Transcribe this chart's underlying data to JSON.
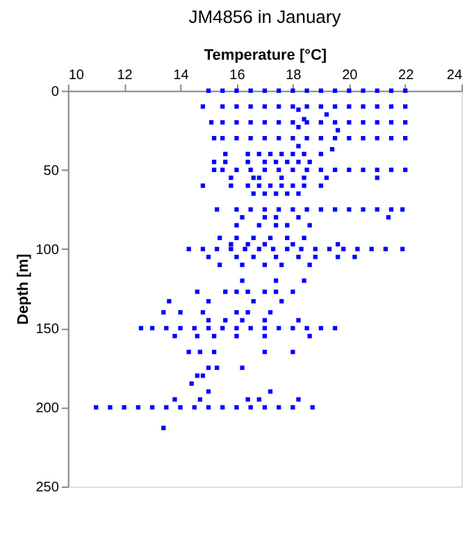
{
  "chart_data": {
    "type": "scatter",
    "title": "JM4856 in January",
    "xlabel": "Temperature [°C]",
    "ylabel": "Depth [m]",
    "xlim": [
      10,
      24
    ],
    "xticks": [
      10,
      12,
      14,
      16,
      18,
      20,
      22,
      24
    ],
    "ylim": [
      250,
      0
    ],
    "yticks": [
      0,
      50,
      100,
      150,
      200,
      250
    ],
    "grid": false,
    "legend": false,
    "marker": "square",
    "series": [
      {
        "color": "#0000ff",
        "x": [
          15.0,
          15.5,
          16.0,
          16.5,
          17.0,
          17.5,
          18.0,
          18.5,
          19.0,
          19.5,
          20.0,
          20.5,
          21.0,
          21.5,
          22.0,
          14.8,
          15.5,
          16.0,
          16.5,
          17.0,
          17.5,
          18.0,
          18.5,
          19.0,
          19.5,
          20.0,
          20.5,
          21.0,
          21.5,
          22.0,
          15.1,
          15.5,
          16.0,
          16.5,
          17.0,
          17.5,
          18.0,
          18.5,
          19.0,
          19.5,
          20.0,
          20.5,
          21.0,
          21.5,
          22.0,
          15.2,
          15.5,
          16.0,
          16.5,
          17.0,
          17.5,
          18.0,
          18.5,
          19.0,
          19.5,
          20.0,
          20.5,
          21.0,
          21.5,
          22.0,
          15.2,
          15.5,
          16.0,
          16.5,
          17.0,
          17.5,
          18.0,
          18.5,
          19.0,
          19.5,
          20.0,
          20.5,
          21.0,
          21.5,
          22.0,
          15.3,
          16.0,
          16.5,
          17.0,
          17.5,
          18.0,
          18.5,
          19.0,
          19.5,
          20.0,
          20.5,
          21.0,
          21.5,
          21.9,
          14.3,
          14.8,
          15.3,
          15.8,
          16.3,
          16.8,
          17.3,
          17.8,
          18.3,
          18.8,
          19.3,
          19.8,
          20.3,
          20.8,
          21.3,
          21.9,
          12.6,
          13.0,
          13.5,
          14.0,
          14.5,
          15.0,
          15.5,
          16.0,
          16.5,
          17.0,
          17.5,
          18.0,
          18.5,
          19.0,
          19.5,
          11.0,
          11.5,
          12.0,
          12.5,
          13.0,
          13.5,
          14.0,
          14.5,
          15.0,
          15.5,
          16.0,
          16.5,
          17.0,
          17.5,
          18.0,
          18.7,
          18.2,
          19.2,
          18.4,
          18.2,
          19.6,
          18.2,
          19.4,
          15.6,
          16.4,
          16.8,
          17.2,
          17.6,
          18.0,
          18.4,
          19.0,
          15.2,
          15.6,
          16.4,
          17.0,
          17.4,
          17.8,
          18.2,
          18.6,
          15.8,
          16.6,
          16.8,
          17.6,
          18.4,
          19.2,
          21.0,
          14.8,
          15.8,
          16.4,
          16.8,
          17.2,
          17.6,
          18.0,
          18.4,
          19.0,
          16.6,
          17.0,
          17.4,
          17.8,
          18.2,
          16.2,
          17.0,
          17.4,
          18.2,
          21.4,
          16.0,
          16.8,
          17.4,
          17.8,
          18.6,
          15.4,
          16.0,
          16.6,
          17.2,
          17.8,
          18.4,
          15.8,
          16.4,
          17.0,
          18.0,
          19.6,
          15.0,
          16.0,
          16.6,
          17.4,
          18.2,
          18.8,
          19.6,
          20.2,
          15.4,
          16.2,
          17.0,
          17.6,
          18.6,
          16.2,
          17.4,
          18.4,
          14.6,
          15.6,
          16.0,
          16.4,
          17.0,
          17.4,
          18.0,
          13.6,
          15.0,
          16.6,
          17.6,
          13.4,
          14.0,
          14.8,
          16.0,
          16.4,
          17.2,
          15.0,
          15.6,
          16.2,
          17.0,
          18.2,
          13.8,
          14.6,
          15.2,
          16.0,
          17.0,
          18.6,
          14.3,
          14.7,
          15.2,
          17.0,
          18.0,
          15.0,
          15.3,
          16.2,
          14.6,
          14.8,
          14.4,
          15.0,
          17.2,
          13.8,
          14.7,
          16.4,
          16.8,
          18.2,
          13.4
        ],
        "values": [
          0,
          0,
          0,
          0,
          0,
          0,
          0,
          0,
          0,
          0,
          0,
          0,
          0,
          0,
          0,
          10,
          10,
          10,
          10,
          10,
          10,
          10,
          10,
          10,
          10,
          10,
          10,
          10,
          10,
          10,
          20,
          20,
          20,
          20,
          20,
          20,
          20,
          20,
          20,
          20,
          20,
          20,
          20,
          20,
          20,
          30,
          30,
          30,
          30,
          30,
          30,
          30,
          30,
          30,
          30,
          30,
          30,
          30,
          30,
          30,
          50,
          50,
          50,
          50,
          50,
          50,
          50,
          50,
          50,
          50,
          50,
          50,
          50,
          50,
          50,
          75,
          75,
          75,
          75,
          75,
          75,
          75,
          75,
          75,
          75,
          75,
          75,
          75,
          75,
          100,
          100,
          100,
          100,
          100,
          100,
          100,
          100,
          100,
          100,
          100,
          100,
          100,
          100,
          100,
          100,
          150,
          150,
          150,
          150,
          150,
          150,
          150,
          150,
          150,
          150,
          150,
          150,
          150,
          150,
          150,
          200,
          200,
          200,
          200,
          200,
          200,
          200,
          200,
          200,
          200,
          200,
          200,
          200,
          200,
          200,
          200,
          12,
          15,
          18,
          23,
          25,
          35,
          37,
          40,
          40,
          40,
          40,
          40,
          40,
          40,
          40,
          45,
          45,
          45,
          45,
          45,
          45,
          45,
          45,
          55,
          55,
          55,
          55,
          55,
          55,
          55,
          60,
          60,
          60,
          60,
          60,
          60,
          60,
          60,
          60,
          65,
          65,
          65,
          65,
          65,
          80,
          80,
          80,
          80,
          80,
          85,
          85,
          85,
          85,
          85,
          93,
          93,
          93,
          93,
          93,
          93,
          97,
          97,
          97,
          97,
          97,
          105,
          105,
          105,
          105,
          105,
          105,
          105,
          105,
          110,
          110,
          110,
          110,
          110,
          120,
          120,
          120,
          127,
          127,
          127,
          127,
          127,
          127,
          127,
          133,
          133,
          133,
          133,
          140,
          140,
          140,
          140,
          140,
          140,
          145,
          145,
          145,
          145,
          145,
          155,
          155,
          155,
          155,
          155,
          155,
          165,
          165,
          165,
          165,
          165,
          175,
          175,
          175,
          180,
          180,
          185,
          190,
          190,
          195,
          195,
          195,
          195,
          195,
          213
        ]
      }
    ]
  }
}
